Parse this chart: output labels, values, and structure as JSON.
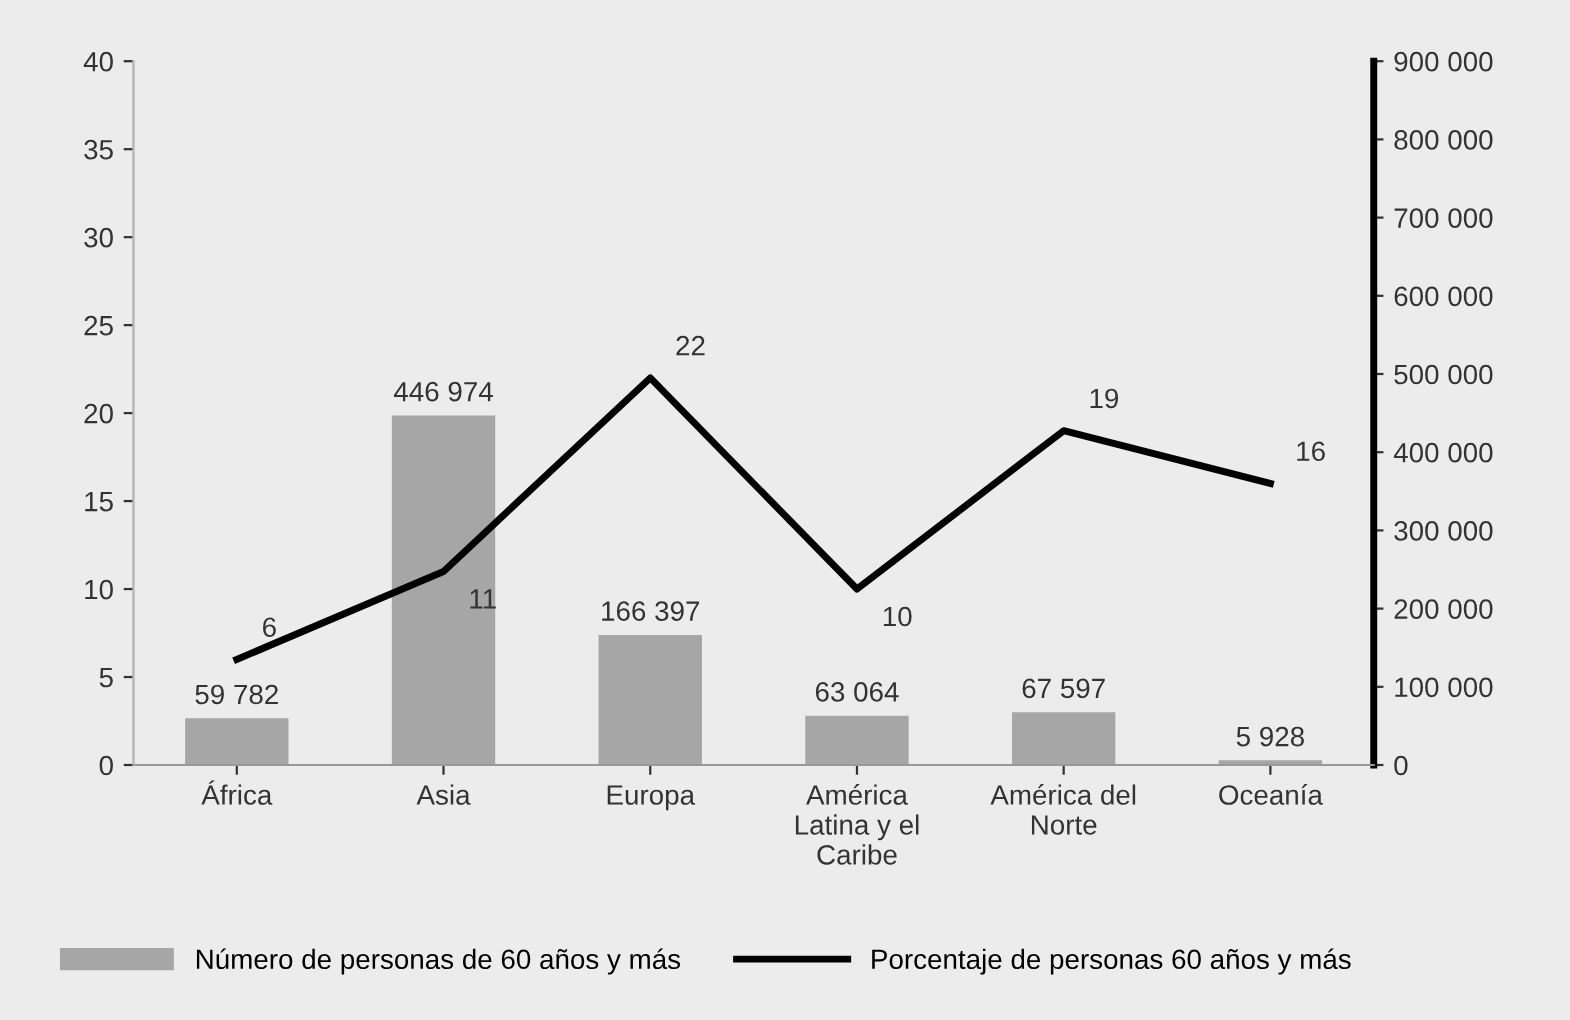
{
  "chart_data": {
    "type": "bar",
    "categories": [
      "África",
      "Asia",
      "Europa",
      "América Latina y el Caribe",
      "América del Norte",
      "Oceanía"
    ],
    "series": [
      {
        "name": "Número de personas de 60 años y más",
        "axis": "y2",
        "color": "#a6a6a6",
        "values": [
          59782,
          446974,
          166397,
          63064,
          67597,
          5928
        ],
        "value_labels": [
          "59 782",
          "446 974",
          "166 397",
          "63 064",
          "67 597",
          "5 928"
        ]
      },
      {
        "name": "Porcentaje de personas 60 años y más",
        "type": "line",
        "color": "#000000",
        "values": [
          6,
          11,
          22,
          10,
          19,
          16
        ],
        "value_labels": [
          "6",
          "11",
          "22",
          "10",
          "19",
          "16"
        ]
      }
    ],
    "ylim": [
      0,
      40
    ],
    "yticks": [
      0,
      5,
      10,
      15,
      20,
      25,
      30,
      35,
      40
    ],
    "y2lim": [
      0,
      900000
    ],
    "y2ticks": [
      0,
      {
        "value": 100000,
        "label": "100 000"
      },
      {
        "value": 200000,
        "label": "200 000"
      },
      {
        "value": 300000,
        "label": "300 000"
      },
      {
        "value": 400000,
        "label": "400 000"
      },
      {
        "value": 500000,
        "label": "500 000"
      },
      {
        "value": 600000,
        "label": "600 000"
      },
      {
        "value": 700000,
        "label": "700 000"
      },
      {
        "value": 800000,
        "label": "800 000"
      },
      {
        "value": 900000,
        "label": "900 000"
      }
    ],
    "legend": "bottom",
    "grid": false,
    "marker": "none",
    "line_style": "solid"
  }
}
